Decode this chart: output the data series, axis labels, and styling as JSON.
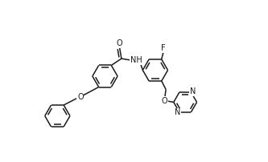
{
  "bg_color": "#ffffff",
  "line_color": "#1a1a1a",
  "lw": 1.1,
  "fs": 7.0,
  "fig_w": 3.33,
  "fig_h": 2.02,
  "dpi": 100,
  "xlim": [
    -0.5,
    10.5
  ],
  "ylim": [
    -0.2,
    6.2
  ]
}
